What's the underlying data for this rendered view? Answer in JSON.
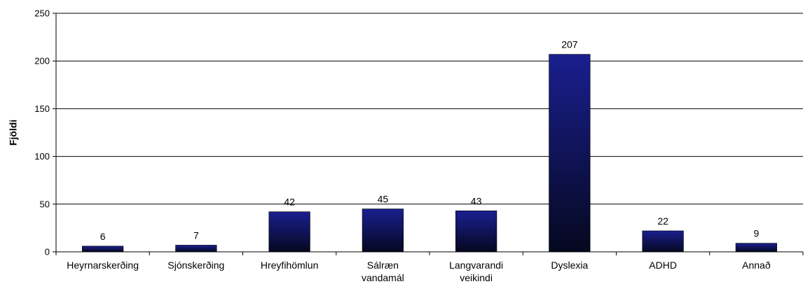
{
  "chart_data": {
    "type": "bar",
    "ylabel": "Fjöldi",
    "xlabel": "",
    "categories": [
      [
        "Heyrnarskerðing"
      ],
      [
        "Sjónskerðing"
      ],
      [
        "Hreyfihömlun"
      ],
      [
        "Sálræn",
        "vandamál"
      ],
      [
        "Langvarandi",
        "veikindi"
      ],
      [
        "Dyslexia"
      ],
      [
        "ADHD"
      ],
      [
        "Annað"
      ]
    ],
    "values": [
      6,
      7,
      42,
      45,
      43,
      207,
      22,
      9
    ],
    "ylim": [
      0,
      250
    ],
    "yticks": [
      0,
      50,
      100,
      150,
      200,
      250
    ],
    "grid": true,
    "legend": "none",
    "bar_color_top": "#1a1f8f",
    "bar_color_bottom": "#05081f"
  }
}
